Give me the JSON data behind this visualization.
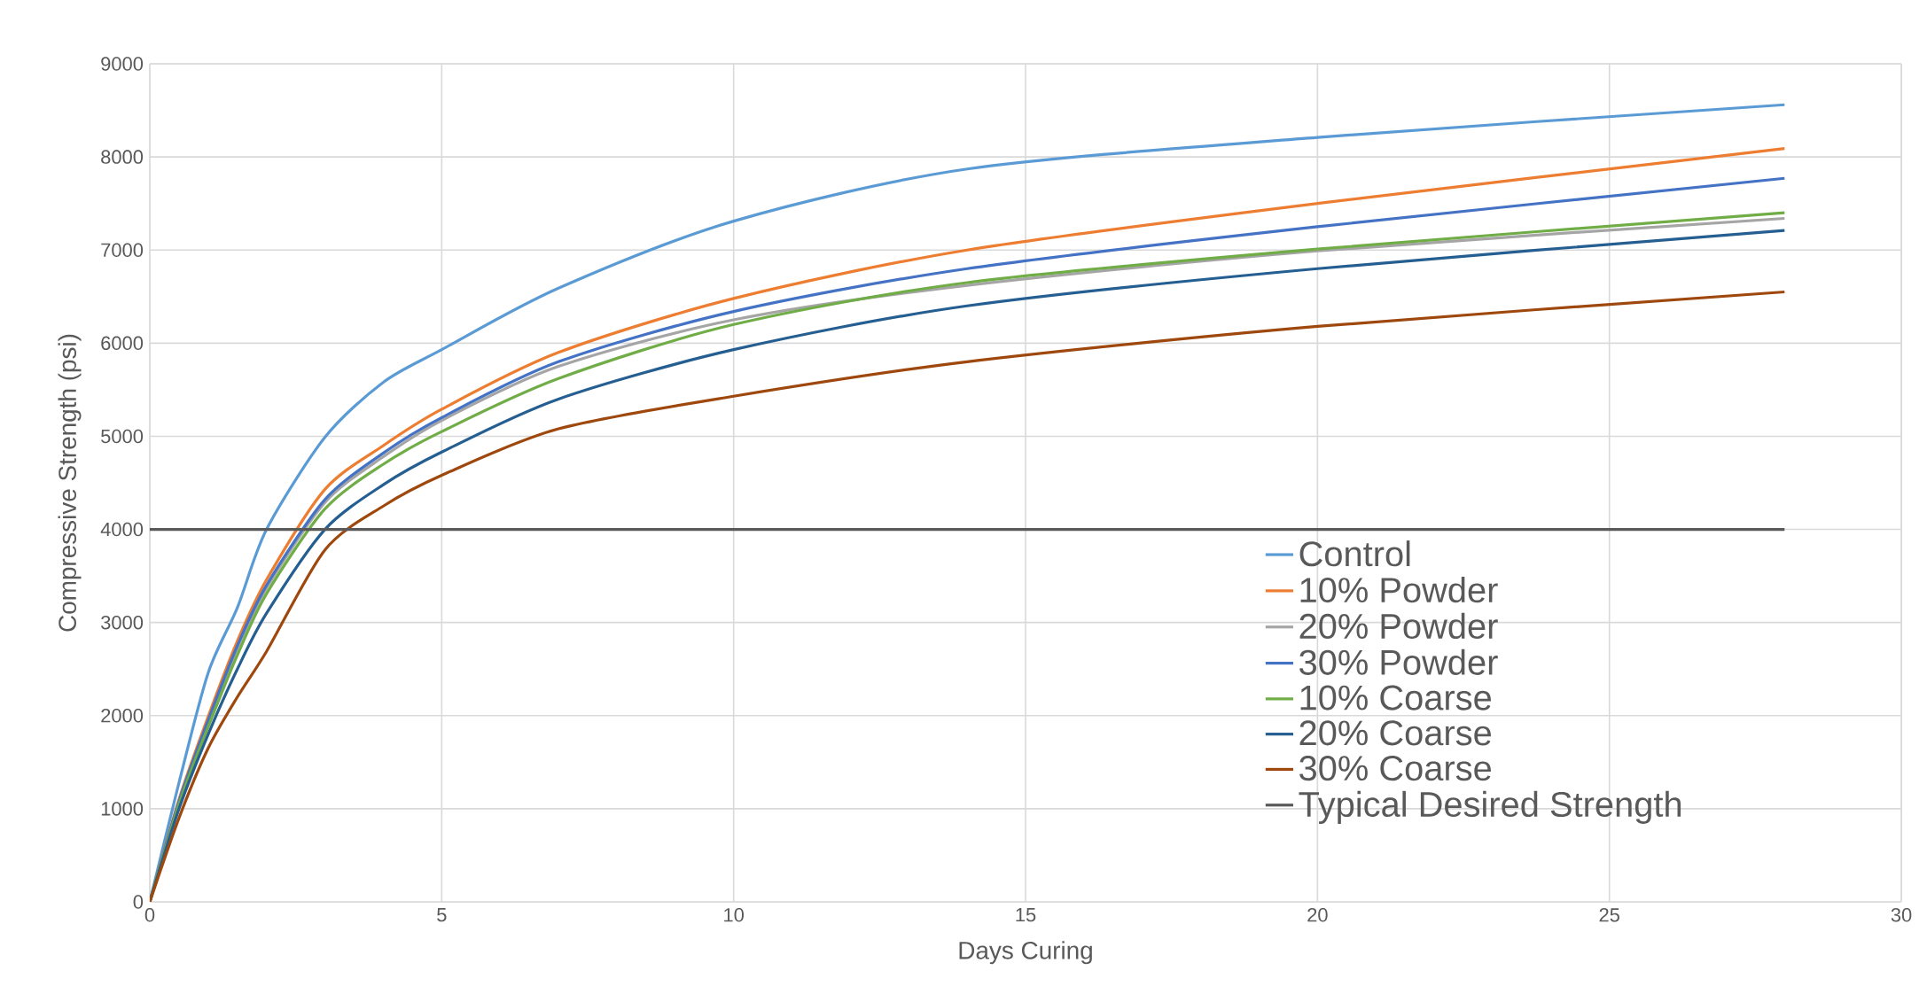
{
  "chart_data": {
    "type": "line",
    "xlabel": "Days Curing",
    "ylabel": "Compressive Strength (psi)",
    "xlim": [
      0,
      30
    ],
    "xticks": [
      0,
      5,
      10,
      15,
      20,
      25,
      30
    ],
    "ylim": [
      0,
      9000
    ],
    "yticks": [
      0,
      1000,
      2000,
      3000,
      4000,
      5000,
      6000,
      7000,
      8000,
      9000
    ],
    "grid": true,
    "legend": "bottom right",
    "marker": "none",
    "x": [
      0,
      0.5,
      1,
      1.5,
      2,
      3,
      4,
      5,
      7,
      10,
      14,
      20,
      28
    ],
    "series": [
      {
        "name": "Control",
        "color": "#5b9bd5",
        "values": [
          0,
          1280,
          2460,
          3160,
          4000,
          4990,
          5580,
          5930,
          6590,
          7310,
          7870,
          8210,
          8560
        ]
      },
      {
        "name": "10% Powder",
        "color": "#ed7d31",
        "values": [
          0,
          1100,
          1990,
          2800,
          3460,
          4430,
          4900,
          5290,
          5900,
          6480,
          7000,
          7500,
          8090
        ]
      },
      {
        "name": "20% Powder",
        "color": "#a5a5a5",
        "values": [
          0,
          1070,
          1930,
          2720,
          3370,
          4290,
          4780,
          5170,
          5750,
          6250,
          6620,
          6990,
          7340
        ]
      },
      {
        "name": "30% Powder",
        "color": "#4472c4",
        "values": [
          0,
          1080,
          1950,
          2750,
          3400,
          4320,
          4820,
          5200,
          5800,
          6340,
          6800,
          7250,
          7770
        ]
      },
      {
        "name": "10% Coarse",
        "color": "#70ad47",
        "values": [
          0,
          1050,
          1880,
          2650,
          3310,
          4220,
          4700,
          5050,
          5620,
          6200,
          6650,
          7010,
          7400
        ]
      },
      {
        "name": "20% Coarse",
        "color": "#255e91",
        "values": [
          0,
          1000,
          1800,
          2500,
          3100,
          4000,
          4480,
          4830,
          5400,
          5930,
          6400,
          6800,
          7210
        ]
      },
      {
        "name": "30% Coarse",
        "color": "#9e480e",
        "values": [
          0,
          900,
          1650,
          2200,
          2690,
          3780,
          4250,
          4580,
          5080,
          5430,
          5800,
          6180,
          6550
        ]
      },
      {
        "name": "Typical Desired Strength",
        "color": "#595959",
        "x": [
          0,
          28
        ],
        "values": [
          4000,
          4000
        ]
      }
    ]
  }
}
